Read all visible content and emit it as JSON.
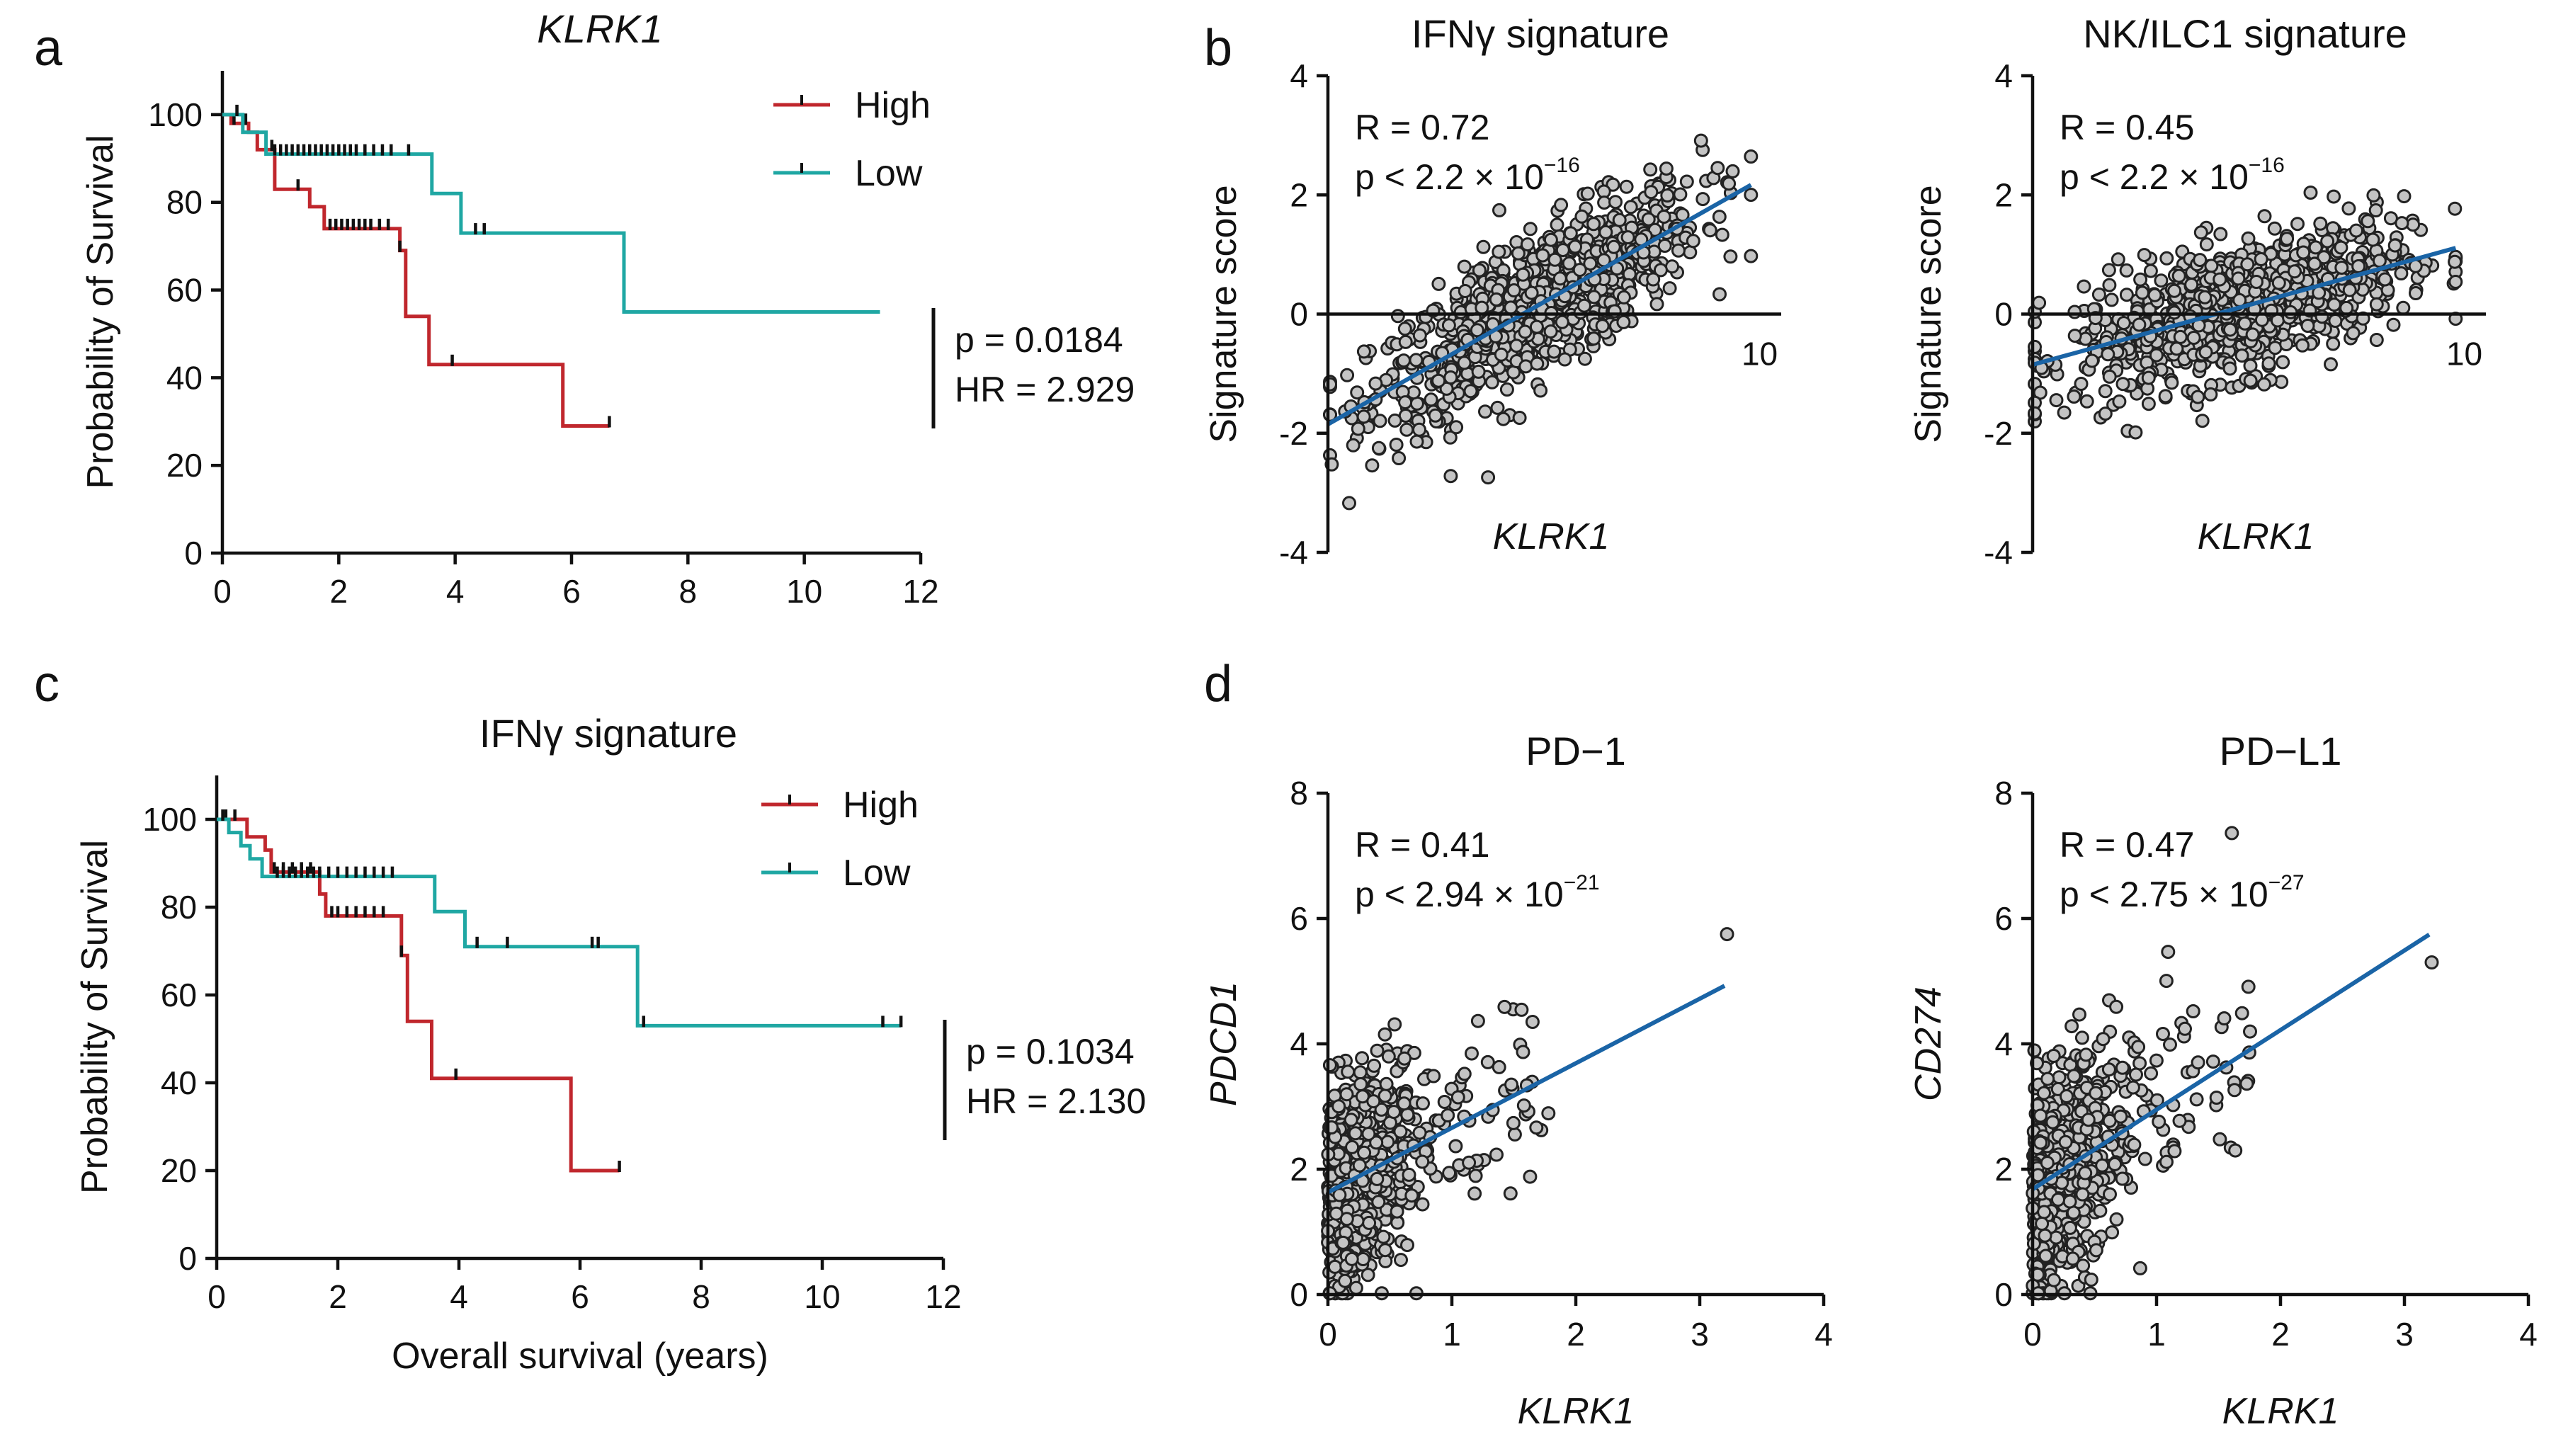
{
  "colors": {
    "high": "#c0272d",
    "low": "#1fa7a3",
    "fit": "#1a64a6",
    "point": "#c4c4c4"
  },
  "panel_labels": {
    "a": "a",
    "b": "b",
    "c": "c",
    "d": "d"
  },
  "km_legend": {
    "high": "High",
    "low": "Low"
  },
  "km_xlabel": "Overall survival (years)",
  "km_ylabel": "Probability of Survival",
  "b_ylabel": "Signature score",
  "chart_data": [
    {
      "id": "a",
      "type": "line",
      "subtype": "kaplan-meier",
      "title": "KLRK1",
      "xlabel": "",
      "ylabel": "Probability of Survival",
      "xlim": [
        0,
        12
      ],
      "ylim": [
        0,
        110
      ],
      "xticks": [
        0,
        2,
        4,
        6,
        8,
        10,
        12
      ],
      "yticks": [
        0,
        20,
        40,
        60,
        80,
        100
      ],
      "xtick_labels": [
        "0",
        "2",
        "4",
        "6",
        "8",
        "10",
        "12"
      ],
      "ytick_labels": [
        "0",
        "20",
        "40",
        "60",
        "80",
        "100"
      ],
      "p_text": "p = 0.0184",
      "hr_text": "HR = 2.929",
      "series": [
        {
          "name": "High",
          "color": "#c0272d",
          "steps": [
            [
              0,
              100
            ],
            [
              0.15,
              100
            ],
            [
              0.15,
              98
            ],
            [
              0.45,
              98
            ],
            [
              0.45,
              96
            ],
            [
              0.6,
              96
            ],
            [
              0.6,
              92
            ],
            [
              0.9,
              92
            ],
            [
              0.9,
              83
            ],
            [
              1.5,
              83
            ],
            [
              1.5,
              79
            ],
            [
              1.75,
              79
            ],
            [
              1.75,
              74
            ],
            [
              3.05,
              74
            ],
            [
              3.05,
              69
            ],
            [
              3.15,
              69
            ],
            [
              3.15,
              54
            ],
            [
              3.55,
              54
            ],
            [
              3.55,
              43
            ],
            [
              5.85,
              43
            ],
            [
              5.85,
              29
            ],
            [
              6.65,
              29
            ]
          ],
          "censors": [
            [
              0.2,
              98
            ],
            [
              0.4,
              98
            ],
            [
              0.85,
              92
            ],
            [
              1.3,
              83
            ],
            [
              1.85,
              74
            ],
            [
              1.95,
              74
            ],
            [
              2.05,
              74
            ],
            [
              2.15,
              74
            ],
            [
              2.25,
              74
            ],
            [
              2.35,
              74
            ],
            [
              2.45,
              74
            ],
            [
              2.55,
              74
            ],
            [
              2.7,
              74
            ],
            [
              2.85,
              74
            ],
            [
              3.05,
              69
            ],
            [
              3.95,
              43
            ],
            [
              6.65,
              29
            ]
          ]
        },
        {
          "name": "Low",
          "color": "#1fa7a3",
          "steps": [
            [
              0,
              100
            ],
            [
              0.35,
              100
            ],
            [
              0.35,
              96
            ],
            [
              0.75,
              96
            ],
            [
              0.75,
              91
            ],
            [
              3.6,
              91
            ],
            [
              3.6,
              82
            ],
            [
              4.1,
              82
            ],
            [
              4.1,
              73
            ],
            [
              6.9,
              73
            ],
            [
              6.9,
              55
            ],
            [
              11.3,
              55
            ]
          ],
          "censors": [
            [
              0.25,
              100
            ],
            [
              0.9,
              91
            ],
            [
              1.0,
              91
            ],
            [
              1.1,
              91
            ],
            [
              1.2,
              91
            ],
            [
              1.3,
              91
            ],
            [
              1.4,
              91
            ],
            [
              1.5,
              91
            ],
            [
              1.6,
              91
            ],
            [
              1.7,
              91
            ],
            [
              1.8,
              91
            ],
            [
              1.9,
              91
            ],
            [
              2.0,
              91
            ],
            [
              2.1,
              91
            ],
            [
              2.2,
              91
            ],
            [
              2.3,
              91
            ],
            [
              2.45,
              91
            ],
            [
              2.6,
              91
            ],
            [
              2.75,
              91
            ],
            [
              2.9,
              91
            ],
            [
              3.2,
              91
            ],
            [
              4.35,
              73
            ],
            [
              4.5,
              73
            ]
          ]
        }
      ]
    },
    {
      "id": "c",
      "type": "line",
      "subtype": "kaplan-meier",
      "title": "IFNγ signature",
      "xlabel": "Overall survival (years)",
      "ylabel": "Probability of Survival",
      "xlim": [
        0,
        12
      ],
      "ylim": [
        0,
        110
      ],
      "xticks": [
        0,
        2,
        4,
        6,
        8,
        10,
        12
      ],
      "yticks": [
        0,
        20,
        40,
        60,
        80,
        100
      ],
      "xtick_labels": [
        "0",
        "2",
        "4",
        "6",
        "8",
        "10",
        "12"
      ],
      "ytick_labels": [
        "0",
        "20",
        "40",
        "60",
        "80",
        "100"
      ],
      "p_text": "p = 0.1034",
      "hr_text": "HR = 2.130",
      "series": [
        {
          "name": "High",
          "color": "#c0272d",
          "steps": [
            [
              0,
              100
            ],
            [
              0.5,
              100
            ],
            [
              0.5,
              96
            ],
            [
              0.8,
              96
            ],
            [
              0.8,
              93
            ],
            [
              0.9,
              93
            ],
            [
              0.9,
              88
            ],
            [
              1.7,
              88
            ],
            [
              1.7,
              83
            ],
            [
              1.8,
              83
            ],
            [
              1.8,
              78
            ],
            [
              3.05,
              78
            ],
            [
              3.05,
              69
            ],
            [
              3.15,
              69
            ],
            [
              3.15,
              54
            ],
            [
              3.55,
              54
            ],
            [
              3.55,
              41
            ],
            [
              5.85,
              41
            ],
            [
              5.85,
              20
            ],
            [
              6.65,
              20
            ]
          ],
          "censors": [
            [
              0.15,
              100
            ],
            [
              0.3,
              100
            ],
            [
              0.95,
              88
            ],
            [
              1.1,
              88
            ],
            [
              1.25,
              88
            ],
            [
              1.4,
              88
            ],
            [
              1.55,
              88
            ],
            [
              1.9,
              78
            ],
            [
              2.0,
              78
            ],
            [
              2.15,
              78
            ],
            [
              2.3,
              78
            ],
            [
              2.45,
              78
            ],
            [
              2.6,
              78
            ],
            [
              2.75,
              78
            ],
            [
              3.05,
              69
            ],
            [
              3.95,
              41
            ],
            [
              6.65,
              20
            ]
          ]
        },
        {
          "name": "Low",
          "color": "#1fa7a3",
          "steps": [
            [
              0,
              100
            ],
            [
              0.2,
              100
            ],
            [
              0.2,
              97
            ],
            [
              0.4,
              97
            ],
            [
              0.4,
              94
            ],
            [
              0.55,
              94
            ],
            [
              0.55,
              91
            ],
            [
              0.75,
              91
            ],
            [
              0.75,
              87
            ],
            [
              3.6,
              87
            ],
            [
              3.6,
              79
            ],
            [
              4.1,
              79
            ],
            [
              4.1,
              71
            ],
            [
              6.95,
              71
            ],
            [
              6.95,
              53
            ],
            [
              11.3,
              53
            ]
          ],
          "censors": [
            [
              0.1,
              100
            ],
            [
              1.0,
              87
            ],
            [
              1.1,
              87
            ],
            [
              1.2,
              87
            ],
            [
              1.3,
              87
            ],
            [
              1.4,
              87
            ],
            [
              1.5,
              87
            ],
            [
              1.6,
              87
            ],
            [
              1.7,
              87
            ],
            [
              1.85,
              87
            ],
            [
              2.0,
              87
            ],
            [
              2.15,
              87
            ],
            [
              2.3,
              87
            ],
            [
              2.45,
              87
            ],
            [
              2.6,
              87
            ],
            [
              2.75,
              87
            ],
            [
              2.9,
              87
            ],
            [
              4.3,
              71
            ],
            [
              4.8,
              71
            ],
            [
              6.2,
              71
            ],
            [
              6.3,
              71
            ],
            [
              7.05,
              53
            ],
            [
              11.0,
              53
            ],
            [
              11.3,
              53
            ]
          ]
        }
      ]
    },
    {
      "id": "b1",
      "type": "scatter",
      "title": "IFNγ signature",
      "xlabel": "KLRK1",
      "ylabel": "Signature score",
      "xlim": [
        0,
        10.5
      ],
      "ylim": [
        -4,
        4
      ],
      "x_axis_at": 0,
      "xticks_labeled": [
        10
      ],
      "yticks": [
        -4,
        -2,
        0,
        2,
        4
      ],
      "xtick_labels": [
        "10"
      ],
      "ytick_labels": [
        "-4",
        "-2",
        "0",
        "2",
        "4"
      ],
      "R_text": "R = 0.72",
      "p_text": "p < 2.2 × 10",
      "p_exp": "−16",
      "fit": {
        "slope": 0.41,
        "intercept": -1.85,
        "x_range": [
          0,
          9.8
        ]
      },
      "n_points": 900,
      "points_summary": "x 0-9.8, y ≈ -1.85 + 0.41x ± 0.6"
    },
    {
      "id": "b2",
      "type": "scatter",
      "title": "NK/ILC1 signature",
      "xlabel": "KLRK1",
      "ylabel": "Signature score",
      "xlim": [
        0,
        10.5
      ],
      "ylim": [
        -4,
        4
      ],
      "x_axis_at": 0,
      "xticks_labeled": [
        10
      ],
      "yticks": [
        -4,
        -2,
        0,
        2,
        4
      ],
      "xtick_labels": [
        "10"
      ],
      "ytick_labels": [
        "-4",
        "-2",
        "0",
        "2",
        "4"
      ],
      "R_text": "R = 0.45",
      "p_text": "p < 2.2 × 10",
      "p_exp": "−16",
      "fit": {
        "slope": 0.2,
        "intercept": -0.85,
        "x_range": [
          0,
          9.8
        ]
      },
      "n_points": 900,
      "points_summary": "x 0-9.8, y ≈ -0.85 + 0.2x ± 0.55"
    },
    {
      "id": "d1",
      "type": "scatter",
      "title": "PD−1",
      "xlabel": "KLRK1",
      "ylabel": "PDCD1",
      "xlim": [
        0,
        4
      ],
      "ylim": [
        0,
        8
      ],
      "xticks": [
        0,
        1,
        2,
        3,
        4
      ],
      "yticks": [
        0,
        2,
        4,
        6,
        8
      ],
      "xtick_labels": [
        "0",
        "1",
        "2",
        "3",
        "4"
      ],
      "ytick_labels": [
        "0",
        "2",
        "4",
        "6",
        "8"
      ],
      "R_text": "R = 0.41",
      "p_text": "p < 2.94 × 10",
      "p_exp": "−21",
      "fit": {
        "slope": 1.03,
        "intercept": 1.63,
        "x_range": [
          0,
          3.2
        ]
      },
      "n_points": 700,
      "points_summary": "x 0-3.2 (dense below 0.6), y ≈ 1.63 + 1.03x ± 0.9"
    },
    {
      "id": "d2",
      "type": "scatter",
      "title": "PD−L1",
      "xlabel": "KLRK1",
      "ylabel": "CD274",
      "xlim": [
        0,
        4
      ],
      "ylim": [
        0,
        8
      ],
      "xticks": [
        0,
        1,
        2,
        3,
        4
      ],
      "yticks": [
        0,
        2,
        4,
        6,
        8
      ],
      "xtick_labels": [
        "0",
        "1",
        "2",
        "3",
        "4"
      ],
      "ytick_labels": [
        "0",
        "2",
        "4",
        "6",
        "8"
      ],
      "R_text": "R = 0.47",
      "p_text": "p < 2.75 × 10",
      "p_exp": "−27",
      "fit": {
        "slope": 1.27,
        "intercept": 1.68,
        "x_range": [
          0,
          3.2
        ]
      },
      "n_points": 700,
      "points_summary": "x 0-3.2 (dense below 0.6), y ≈ 1.68 + 1.27x ± 0.9"
    }
  ]
}
